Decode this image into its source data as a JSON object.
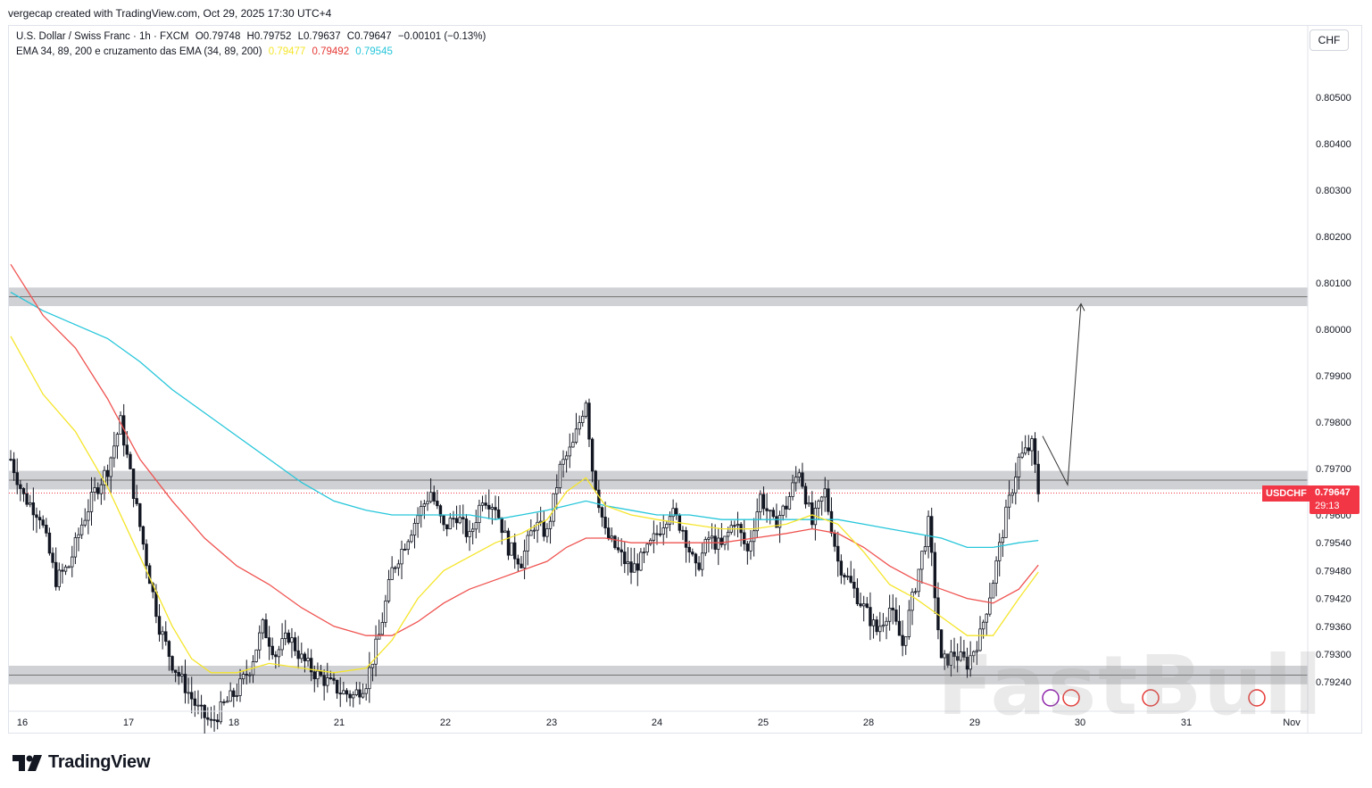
{
  "credit": "vergecap created with TradingView.com, Oct 29, 2025 17:30 UTC+4",
  "legend": {
    "symbol_line": "U.S. Dollar / Swiss Franc · 1h · FXCM",
    "open": "O0.79748",
    "high": "H0.79752",
    "low": "L0.79637",
    "close": "C0.79647",
    "change": "−0.00101 (−0.13%)",
    "indicator": "EMA 34, 89, 200 e cruzamento das EMA (34, 89, 200)",
    "ema34": "0.79477",
    "ema89": "0.79492",
    "ema200": "0.79545"
  },
  "currency": "CHF",
  "price_label": "USDCHF",
  "price_tag": {
    "value": "0.79647",
    "countdown": "29:13"
  },
  "brand": "TradingView",
  "watermark": "FastBull",
  "colors": {
    "ema34": "#f5e52b",
    "ema89": "#ef5350",
    "ema200": "#26c6da",
    "bull": "#131722",
    "bear": "#131722",
    "zone": "#c8c9cc",
    "price": "#f23645"
  },
  "chart_data": {
    "type": "candlestick",
    "symbol": "USDCHF",
    "interval": "1h",
    "ylim": [
      0.792,
      0.806
    ],
    "y_ticks": [
      "0.80500",
      "0.80400",
      "0.80300",
      "0.80200",
      "0.80100",
      "0.80000",
      "0.79900",
      "0.79800",
      "0.79700",
      "0.79600",
      "0.79540",
      "0.79480",
      "0.79420",
      "0.79360",
      "0.79300",
      "0.79240"
    ],
    "x_ticks": [
      "16",
      "17",
      "18",
      "21",
      "22",
      "23",
      "24",
      "25",
      "28",
      "29",
      "30",
      "31",
      "Nov"
    ],
    "zones": [
      {
        "from": 0.8005,
        "to": 0.8009
      },
      {
        "from": 0.79655,
        "to": 0.79695
      },
      {
        "from": 0.79235,
        "to": 0.79275
      }
    ],
    "last_price": 0.79647,
    "projection": [
      {
        "x": "29",
        "y": 0.7977
      },
      {
        "x": "29",
        "y": 0.79665
      },
      {
        "x": "30",
        "y": 0.80055
      }
    ],
    "close_path": [
      [
        0,
        0.7972
      ],
      [
        4,
        0.7964
      ],
      [
        9,
        0.796
      ],
      [
        14,
        0.7946
      ],
      [
        18,
        0.7949
      ],
      [
        22,
        0.7958
      ],
      [
        26,
        0.7965
      ],
      [
        30,
        0.797
      ],
      [
        34,
        0.798
      ],
      [
        38,
        0.7965
      ],
      [
        42,
        0.795
      ],
      [
        46,
        0.7936
      ],
      [
        50,
        0.7928
      ],
      [
        54,
        0.7923
      ],
      [
        58,
        0.7918
      ],
      [
        62,
        0.7915
      ],
      [
        66,
        0.7919
      ],
      [
        70,
        0.7922
      ],
      [
        74,
        0.7927
      ],
      [
        78,
        0.7936
      ],
      [
        82,
        0.793
      ],
      [
        86,
        0.7934
      ],
      [
        90,
        0.7929
      ],
      [
        94,
        0.7926
      ],
      [
        98,
        0.7924
      ],
      [
        102,
        0.7922
      ],
      [
        106,
        0.7921
      ],
      [
        110,
        0.7924
      ],
      [
        114,
        0.7934
      ],
      [
        118,
        0.7948
      ],
      [
        122,
        0.7954
      ],
      [
        126,
        0.796
      ],
      [
        130,
        0.7965
      ],
      [
        134,
        0.7957
      ],
      [
        138,
        0.796
      ],
      [
        142,
        0.7955
      ],
      [
        146,
        0.7964
      ],
      [
        150,
        0.7962
      ],
      [
        154,
        0.7953
      ],
      [
        158,
        0.795
      ],
      [
        162,
        0.7958
      ],
      [
        166,
        0.7956
      ],
      [
        170,
        0.797
      ],
      [
        174,
        0.7975
      ],
      [
        178,
        0.7985
      ],
      [
        180,
        0.797
      ],
      [
        184,
        0.7956
      ],
      [
        188,
        0.7952
      ],
      [
        192,
        0.7948
      ],
      [
        196,
        0.7951
      ],
      [
        200,
        0.7956
      ],
      [
        204,
        0.7961
      ],
      [
        208,
        0.7957
      ],
      [
        212,
        0.7948
      ],
      [
        216,
        0.7955
      ],
      [
        220,
        0.7953
      ],
      [
        224,
        0.7959
      ],
      [
        228,
        0.7952
      ],
      [
        232,
        0.7964
      ],
      [
        236,
        0.7958
      ],
      [
        240,
        0.7962
      ],
      [
        244,
        0.797
      ],
      [
        248,
        0.7958
      ],
      [
        252,
        0.7965
      ],
      [
        256,
        0.795
      ],
      [
        260,
        0.7945
      ],
      [
        264,
        0.794
      ],
      [
        268,
        0.7935
      ],
      [
        272,
        0.794
      ],
      [
        276,
        0.7932
      ],
      [
        280,
        0.7945
      ],
      [
        284,
        0.7958
      ],
      [
        288,
        0.7928
      ],
      [
        292,
        0.793
      ],
      [
        296,
        0.7928
      ],
      [
        300,
        0.7934
      ],
      [
        304,
        0.7946
      ],
      [
        308,
        0.796
      ],
      [
        312,
        0.7972
      ],
      [
        316,
        0.7975
      ],
      [
        318,
        0.7965
      ]
    ],
    "ema34_path": [
      [
        0,
        0.79985
      ],
      [
        10,
        0.7986
      ],
      [
        20,
        0.7978
      ],
      [
        30,
        0.7966
      ],
      [
        40,
        0.7951
      ],
      [
        50,
        0.7936
      ],
      [
        56,
        0.7929
      ],
      [
        62,
        0.7926
      ],
      [
        70,
        0.7926
      ],
      [
        80,
        0.7928
      ],
      [
        90,
        0.7927
      ],
      [
        100,
        0.7926
      ],
      [
        110,
        0.7927
      ],
      [
        118,
        0.7933
      ],
      [
        126,
        0.7942
      ],
      [
        134,
        0.7948
      ],
      [
        142,
        0.7951
      ],
      [
        150,
        0.7954
      ],
      [
        158,
        0.7956
      ],
      [
        166,
        0.7959
      ],
      [
        172,
        0.7965
      ],
      [
        178,
        0.7968
      ],
      [
        184,
        0.7962
      ],
      [
        192,
        0.796
      ],
      [
        200,
        0.7959
      ],
      [
        210,
        0.7958
      ],
      [
        220,
        0.7957
      ],
      [
        230,
        0.7957
      ],
      [
        240,
        0.7958
      ],
      [
        248,
        0.796
      ],
      [
        256,
        0.7958
      ],
      [
        264,
        0.7952
      ],
      [
        272,
        0.7945
      ],
      [
        280,
        0.7942
      ],
      [
        288,
        0.7938
      ],
      [
        296,
        0.7934
      ],
      [
        304,
        0.7934
      ],
      [
        312,
        0.7942
      ],
      [
        318,
        0.79477
      ]
    ],
    "ema89_path": [
      [
        0,
        0.8014
      ],
      [
        10,
        0.8003
      ],
      [
        20,
        0.7996
      ],
      [
        30,
        0.7985
      ],
      [
        40,
        0.7972
      ],
      [
        50,
        0.7963
      ],
      [
        60,
        0.7955
      ],
      [
        70,
        0.7949
      ],
      [
        80,
        0.7945
      ],
      [
        90,
        0.794
      ],
      [
        100,
        0.7936
      ],
      [
        110,
        0.7934
      ],
      [
        118,
        0.7934
      ],
      [
        126,
        0.7937
      ],
      [
        134,
        0.7941
      ],
      [
        142,
        0.7944
      ],
      [
        150,
        0.7946
      ],
      [
        158,
        0.7948
      ],
      [
        166,
        0.795
      ],
      [
        172,
        0.7953
      ],
      [
        178,
        0.7955
      ],
      [
        184,
        0.7955
      ],
      [
        192,
        0.7954
      ],
      [
        200,
        0.7954
      ],
      [
        210,
        0.7954
      ],
      [
        220,
        0.7954
      ],
      [
        230,
        0.7955
      ],
      [
        240,
        0.7956
      ],
      [
        248,
        0.7957
      ],
      [
        256,
        0.7956
      ],
      [
        264,
        0.7953
      ],
      [
        272,
        0.7949
      ],
      [
        280,
        0.7946
      ],
      [
        288,
        0.7944
      ],
      [
        296,
        0.7942
      ],
      [
        304,
        0.7941
      ],
      [
        312,
        0.7944
      ],
      [
        318,
        0.79492
      ]
    ],
    "ema200_path": [
      [
        0,
        0.8008
      ],
      [
        10,
        0.8004
      ],
      [
        20,
        0.8001
      ],
      [
        30,
        0.7998
      ],
      [
        40,
        0.7993
      ],
      [
        50,
        0.7987
      ],
      [
        60,
        0.7982
      ],
      [
        70,
        0.7977
      ],
      [
        80,
        0.7972
      ],
      [
        90,
        0.7967
      ],
      [
        100,
        0.7963
      ],
      [
        110,
        0.7961
      ],
      [
        118,
        0.796
      ],
      [
        126,
        0.796
      ],
      [
        134,
        0.796
      ],
      [
        142,
        0.796
      ],
      [
        150,
        0.7959
      ],
      [
        158,
        0.796
      ],
      [
        166,
        0.7961
      ],
      [
        172,
        0.7962
      ],
      [
        178,
        0.7963
      ],
      [
        184,
        0.7962
      ],
      [
        192,
        0.7961
      ],
      [
        200,
        0.796
      ],
      [
        210,
        0.796
      ],
      [
        220,
        0.7959
      ],
      [
        230,
        0.7959
      ],
      [
        240,
        0.7959
      ],
      [
        248,
        0.7959
      ],
      [
        256,
        0.7959
      ],
      [
        264,
        0.7958
      ],
      [
        272,
        0.7957
      ],
      [
        280,
        0.7956
      ],
      [
        288,
        0.7955
      ],
      [
        296,
        0.7953
      ],
      [
        304,
        0.7953
      ],
      [
        312,
        0.7954
      ],
      [
        318,
        0.79545
      ]
    ]
  }
}
